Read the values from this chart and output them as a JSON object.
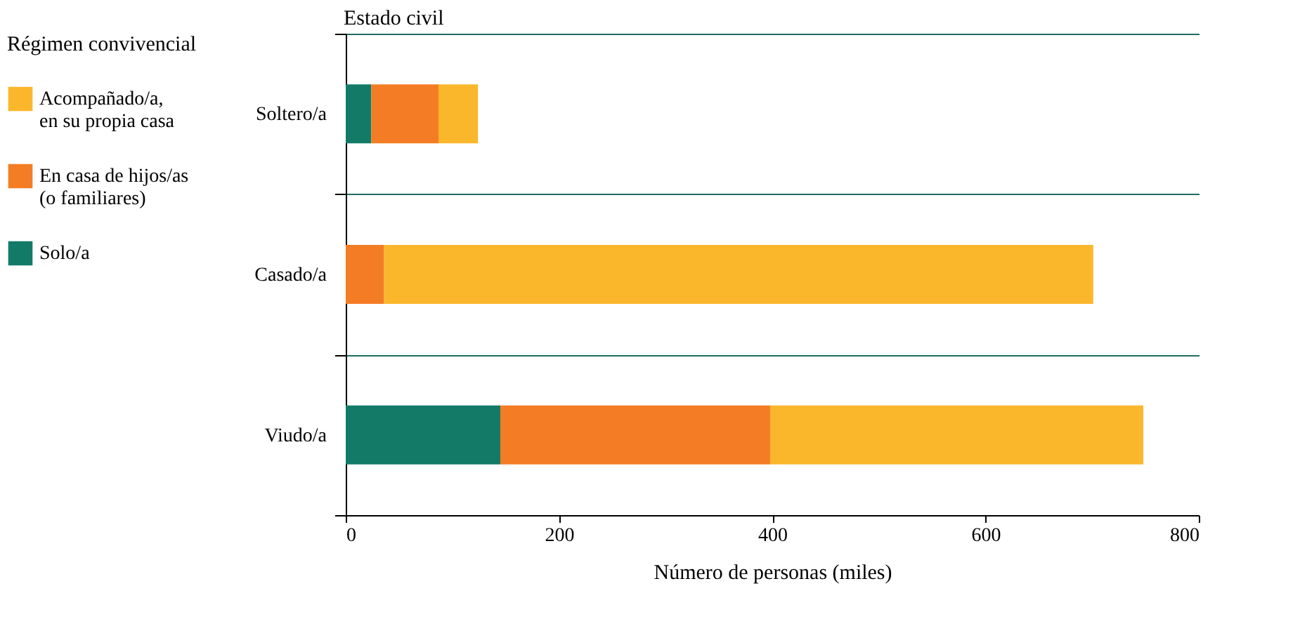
{
  "chart_data": {
    "type": "bar",
    "orientation": "horizontal",
    "stacked": true,
    "ylabel": "Estado civil",
    "xlabel": "Número de personas (miles)",
    "legend_title": "Régimen convivencial",
    "legend": "left",
    "grid": "y",
    "categories": [
      "Soltero/a",
      "Casado/a",
      "Viudo/a"
    ],
    "series": [
      {
        "name": "Solo/a",
        "color": "#137a68",
        "values": [
          24,
          0,
          145
        ]
      },
      {
        "name": "En casa de hijos/as\n(o familiares)",
        "color": "#f47c24",
        "values": [
          63,
          36,
          253
        ]
      },
      {
        "name": "Acompañado/a,\nen su propia casa",
        "color": "#fbb72c",
        "values": [
          37,
          665,
          350
        ]
      }
    ],
    "xlim": [
      0,
      800
    ],
    "xticks": [
      0,
      200,
      400,
      600,
      800
    ]
  }
}
